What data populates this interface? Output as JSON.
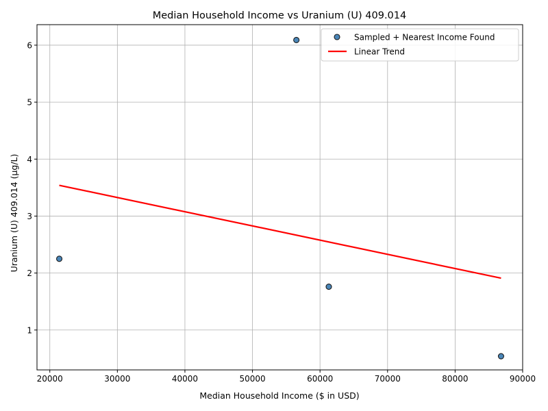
{
  "chart_data": {
    "type": "scatter",
    "title": "Median Household Income vs Uranium (U) 409.014",
    "xlabel": "Median Household Income ($ in USD)",
    "ylabel": "Uranium (U) 409.014 (µg/L)",
    "xlim": [
      18100,
      90000
    ],
    "ylim": [
      0.3,
      6.36
    ],
    "xticks": [
      20000,
      30000,
      40000,
      50000,
      60000,
      70000,
      80000,
      90000
    ],
    "yticks": [
      1,
      2,
      3,
      4,
      5,
      6
    ],
    "grid": true,
    "legend_position": "top-right",
    "series": [
      {
        "name": "Sampled + Nearest Income Found",
        "kind": "scatter",
        "color": "#4a86b8",
        "edgecolor": "#1a1a1a",
        "points": [
          {
            "x": 21400,
            "y": 2.25
          },
          {
            "x": 56500,
            "y": 6.09
          },
          {
            "x": 61300,
            "y": 1.76
          },
          {
            "x": 86800,
            "y": 0.54
          }
        ]
      },
      {
        "name": "Linear Trend",
        "kind": "line",
        "color": "#ff0000",
        "points": [
          {
            "x": 21400,
            "y": 3.54
          },
          {
            "x": 86800,
            "y": 1.91
          }
        ]
      }
    ]
  }
}
